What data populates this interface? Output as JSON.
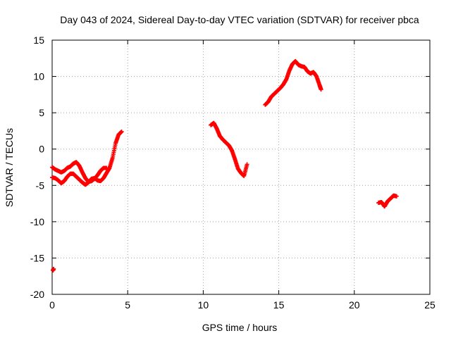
{
  "chart_data": {
    "type": "scatter",
    "title": "Day 043 of 2024, Sidereal Day-to-day VTEC variation (SDTVAR) for receiver pbca",
    "xlabel": "GPS time / hours",
    "ylabel": "SDTVAR / TECUs",
    "xlim": [
      0,
      25
    ],
    "ylim": [
      -20,
      15
    ],
    "xticks": [
      0,
      5,
      10,
      15,
      20,
      25
    ],
    "yticks": [
      -20,
      -15,
      -10,
      -5,
      0,
      5,
      10,
      15
    ],
    "grid": true,
    "marker": "plus",
    "color": "#ff0000",
    "series": [
      {
        "name": "segment-1-upper",
        "x": [
          0.0,
          0.2,
          0.4,
          0.6,
          0.8,
          1.0,
          1.2,
          1.4,
          1.6,
          1.8,
          2.0,
          2.2,
          2.4,
          2.6,
          2.8,
          3.0,
          3.2,
          3.4,
          3.6
        ],
        "y": [
          -2.5,
          -2.8,
          -3.0,
          -3.2,
          -3.0,
          -2.6,
          -2.4,
          -2.0,
          -1.8,
          -2.3,
          -3.2,
          -4.0,
          -4.5,
          -4.4,
          -4.1,
          -3.6,
          -3.0,
          -2.6,
          -2.6
        ]
      },
      {
        "name": "segment-1-lower",
        "x": [
          0.0,
          0.2,
          0.4,
          0.6,
          0.8,
          1.0,
          1.2,
          1.4,
          1.6,
          1.8,
          2.0,
          2.2,
          2.4,
          2.6,
          2.8,
          3.0,
          3.2,
          3.4,
          3.6,
          3.8,
          4.0,
          4.2,
          4.4,
          4.6
        ],
        "y": [
          -3.9,
          -4.0,
          -4.3,
          -4.7,
          -4.4,
          -3.8,
          -3.4,
          -3.4,
          -3.8,
          -4.2,
          -4.6,
          -4.9,
          -4.6,
          -4.1,
          -4.0,
          -4.3,
          -4.4,
          -4.0,
          -3.3,
          -2.6,
          -1.2,
          0.8,
          2.0,
          2.4
        ]
      },
      {
        "name": "segment-2",
        "x": [
          10.5,
          10.7,
          10.9,
          11.1,
          11.3,
          11.5,
          11.7,
          11.9,
          12.1,
          12.3,
          12.5,
          12.7,
          12.9
        ],
        "y": [
          3.3,
          3.6,
          2.8,
          1.8,
          1.3,
          0.9,
          0.5,
          -0.2,
          -1.4,
          -2.7,
          -3.3,
          -3.7,
          -2.1
        ]
      },
      {
        "name": "segment-3",
        "x": [
          14.1,
          14.3,
          14.5,
          14.7,
          14.9,
          15.1,
          15.3,
          15.5,
          15.7,
          15.9,
          16.1,
          16.3,
          16.5,
          16.7,
          16.9,
          17.1,
          17.3,
          17.5,
          17.7,
          17.8
        ],
        "y": [
          6.1,
          6.5,
          7.2,
          7.6,
          8.0,
          8.4,
          8.9,
          9.6,
          10.8,
          11.7,
          12.1,
          11.6,
          11.4,
          11.3,
          10.7,
          10.4,
          10.6,
          10.0,
          8.8,
          8.2
        ]
      },
      {
        "name": "segment-4",
        "x": [
          21.6,
          21.8,
          22.0,
          22.2,
          22.4,
          22.6,
          22.8
        ],
        "y": [
          -7.4,
          -7.3,
          -7.9,
          -7.2,
          -6.8,
          -6.4,
          -6.5
        ]
      },
      {
        "name": "isolated-point",
        "x": [
          0.05,
          0.1
        ],
        "y": [
          -16.7,
          -16.5
        ]
      }
    ]
  }
}
